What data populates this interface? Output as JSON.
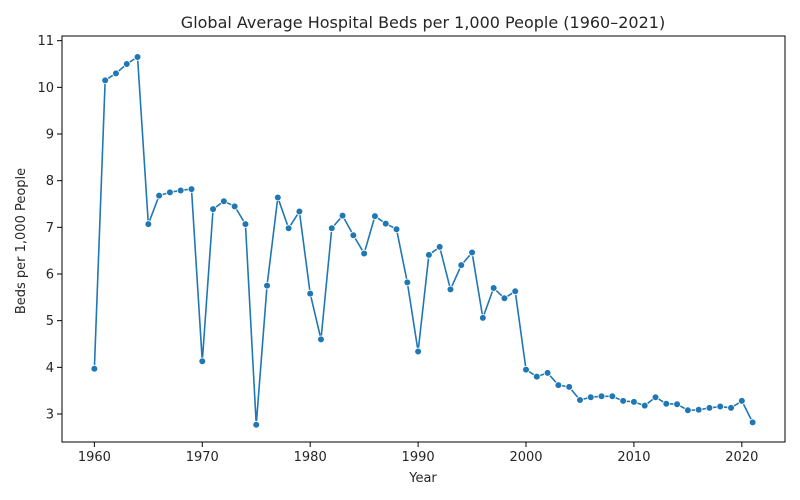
{
  "chart_data": {
    "type": "line",
    "title": "Global Average Hospital Beds per 1,000 People (1960–2021)",
    "xlabel": "Year",
    "ylabel": "Beds per 1,000 People",
    "xlim": [
      1957,
      2024
    ],
    "ylim": [
      2.4,
      11.1
    ],
    "xticks": [
      1960,
      1970,
      1980,
      1990,
      2000,
      2010,
      2020
    ],
    "yticks": [
      3,
      4,
      5,
      6,
      7,
      8,
      9,
      10,
      11
    ],
    "grid": false,
    "legend": "none",
    "color": "#1f77b4",
    "x": [
      1960,
      1961,
      1962,
      1963,
      1964,
      1965,
      1966,
      1967,
      1968,
      1969,
      1970,
      1971,
      1972,
      1973,
      1974,
      1975,
      1976,
      1977,
      1978,
      1979,
      1980,
      1981,
      1982,
      1983,
      1984,
      1985,
      1986,
      1987,
      1988,
      1989,
      1990,
      1991,
      1992,
      1993,
      1994,
      1995,
      1996,
      1997,
      1998,
      1999,
      2000,
      2001,
      2002,
      2003,
      2004,
      2005,
      2006,
      2007,
      2008,
      2009,
      2010,
      2011,
      2012,
      2013,
      2014,
      2015,
      2016,
      2017,
      2018,
      2019,
      2020,
      2021
    ],
    "values": [
      3.97,
      10.15,
      10.3,
      10.5,
      10.65,
      7.07,
      7.68,
      7.75,
      7.79,
      7.82,
      4.13,
      7.39,
      7.56,
      7.45,
      7.07,
      2.77,
      5.75,
      7.64,
      6.98,
      7.34,
      5.58,
      4.6,
      6.98,
      7.25,
      6.83,
      6.44,
      7.24,
      7.08,
      6.96,
      5.82,
      4.34,
      6.41,
      6.58,
      5.67,
      6.19,
      6.46,
      5.06,
      5.7,
      5.48,
      5.63,
      3.95,
      3.8,
      3.88,
      3.62,
      3.58,
      3.3,
      3.36,
      3.38,
      3.38,
      3.28,
      3.26,
      3.18,
      3.36,
      3.22,
      3.21,
      3.08,
      3.09,
      3.13,
      3.16,
      3.13,
      3.28,
      2.82
    ]
  }
}
